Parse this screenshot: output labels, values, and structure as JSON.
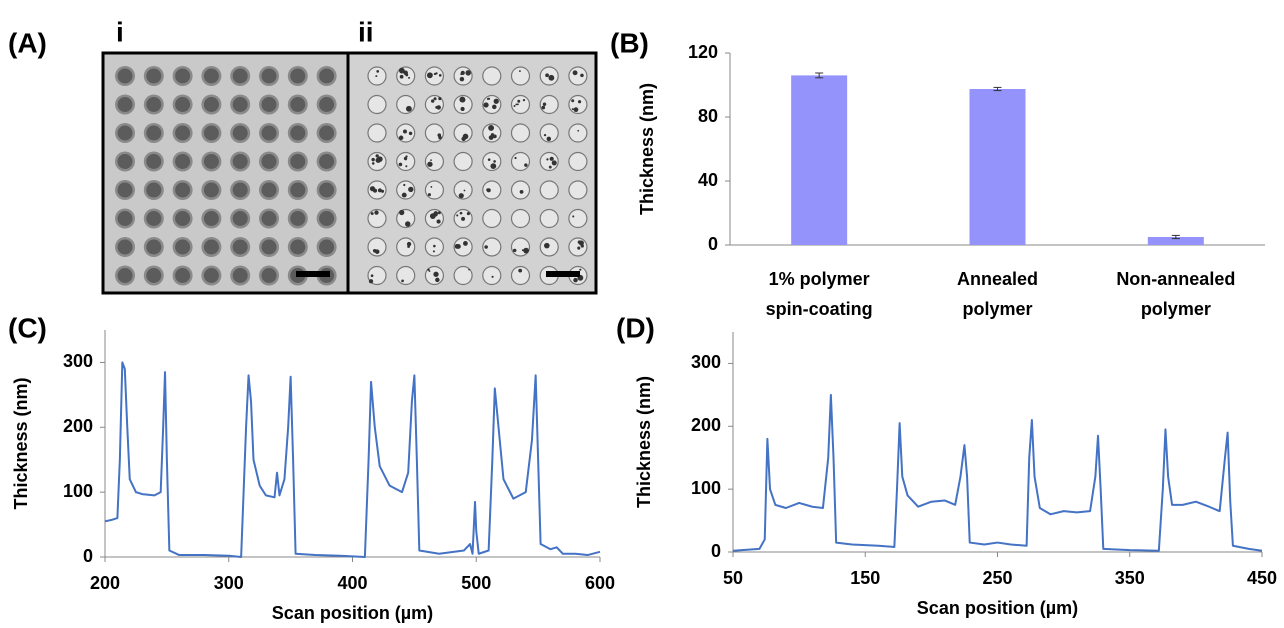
{
  "panel_a": {
    "label": "(A)",
    "images": [
      {
        "label": "i"
      },
      {
        "label": "ii"
      }
    ]
  },
  "chart_data": [
    {
      "type": "bar",
      "panel_label": "(B)",
      "y_label": "Thickness (nm)",
      "categories": [
        [
          "1% polymer",
          "spin-coating"
        ],
        [
          "Annealed",
          "polymer"
        ],
        [
          "Non-annealed",
          "polymer"
        ]
      ],
      "values": [
        106,
        97.5,
        5
      ],
      "errors": [
        1.5,
        1,
        1
      ],
      "color": "#9393fb",
      "ylim": [
        0,
        120
      ],
      "yticks": [
        0,
        40,
        80,
        120
      ]
    },
    {
      "type": "line",
      "panel_label": "(C)",
      "x_label": "Scan position (µm)",
      "y_label": "Thickness (nm)",
      "color": "#4472c4",
      "x": [
        200,
        205,
        210,
        212,
        214,
        216,
        218,
        220,
        225,
        230,
        240,
        245,
        247,
        248.5,
        250,
        252,
        260,
        280,
        300,
        310,
        312,
        314,
        316,
        318,
        320,
        325,
        330,
        337,
        339,
        341,
        345,
        348,
        350,
        352,
        354,
        370,
        390,
        410,
        413,
        415,
        418,
        422,
        430,
        440,
        445,
        448,
        450,
        452,
        454,
        470,
        490,
        495,
        497,
        499,
        500,
        502,
        510,
        513,
        515,
        518,
        522,
        530,
        540,
        545,
        548,
        550,
        552,
        560,
        565,
        570,
        580,
        590,
        600
      ],
      "values": [
        55,
        57,
        60,
        150,
        300,
        290,
        200,
        120,
        100,
        97,
        95,
        100,
        200,
        285,
        150,
        10,
        3,
        3,
        2,
        0,
        100,
        200,
        280,
        240,
        150,
        110,
        95,
        92,
        130,
        95,
        120,
        200,
        278,
        150,
        5,
        3,
        2,
        0,
        150,
        270,
        200,
        140,
        110,
        100,
        130,
        240,
        280,
        150,
        10,
        5,
        10,
        20,
        5,
        85,
        40,
        5,
        10,
        150,
        260,
        200,
        120,
        90,
        100,
        180,
        280,
        150,
        20,
        12,
        15,
        5,
        5,
        3,
        8
      ],
      "xlim": [
        200,
        600
      ],
      "xticks": [
        200,
        300,
        400,
        500,
        600
      ],
      "ylim": [
        0,
        350
      ],
      "yticks": [
        0,
        100,
        200,
        300
      ]
    },
    {
      "type": "line",
      "panel_label": "(D)",
      "x_label": "Scan position (µm)",
      "y_label": "Thickness (nm)",
      "color": "#4472c4",
      "x": [
        50,
        70,
        74,
        76,
        78,
        82,
        90,
        100,
        110,
        118,
        122,
        124,
        126,
        128,
        140,
        160,
        172,
        174,
        176,
        178,
        182,
        190,
        200,
        210,
        218,
        222,
        225,
        227,
        229,
        240,
        250,
        260,
        272,
        274,
        276,
        278,
        282,
        290,
        300,
        310,
        320,
        324,
        326,
        328,
        330,
        350,
        372,
        375,
        377,
        379,
        382,
        390,
        400,
        410,
        418,
        422,
        424,
        426,
        428,
        440,
        450
      ],
      "values": [
        2,
        5,
        20,
        180,
        100,
        75,
        70,
        78,
        72,
        70,
        150,
        250,
        150,
        15,
        12,
        10,
        8,
        100,
        205,
        120,
        90,
        72,
        80,
        82,
        75,
        120,
        170,
        120,
        15,
        12,
        15,
        12,
        10,
        150,
        210,
        120,
        70,
        60,
        65,
        63,
        65,
        120,
        185,
        100,
        5,
        3,
        2,
        100,
        195,
        120,
        75,
        75,
        80,
        72,
        65,
        150,
        190,
        80,
        10,
        5,
        2
      ],
      "xlim": [
        50,
        450
      ],
      "xticks": [
        50,
        150,
        250,
        350,
        450
      ],
      "ylim": [
        0,
        350
      ],
      "yticks": [
        0,
        100,
        200,
        300
      ]
    }
  ]
}
